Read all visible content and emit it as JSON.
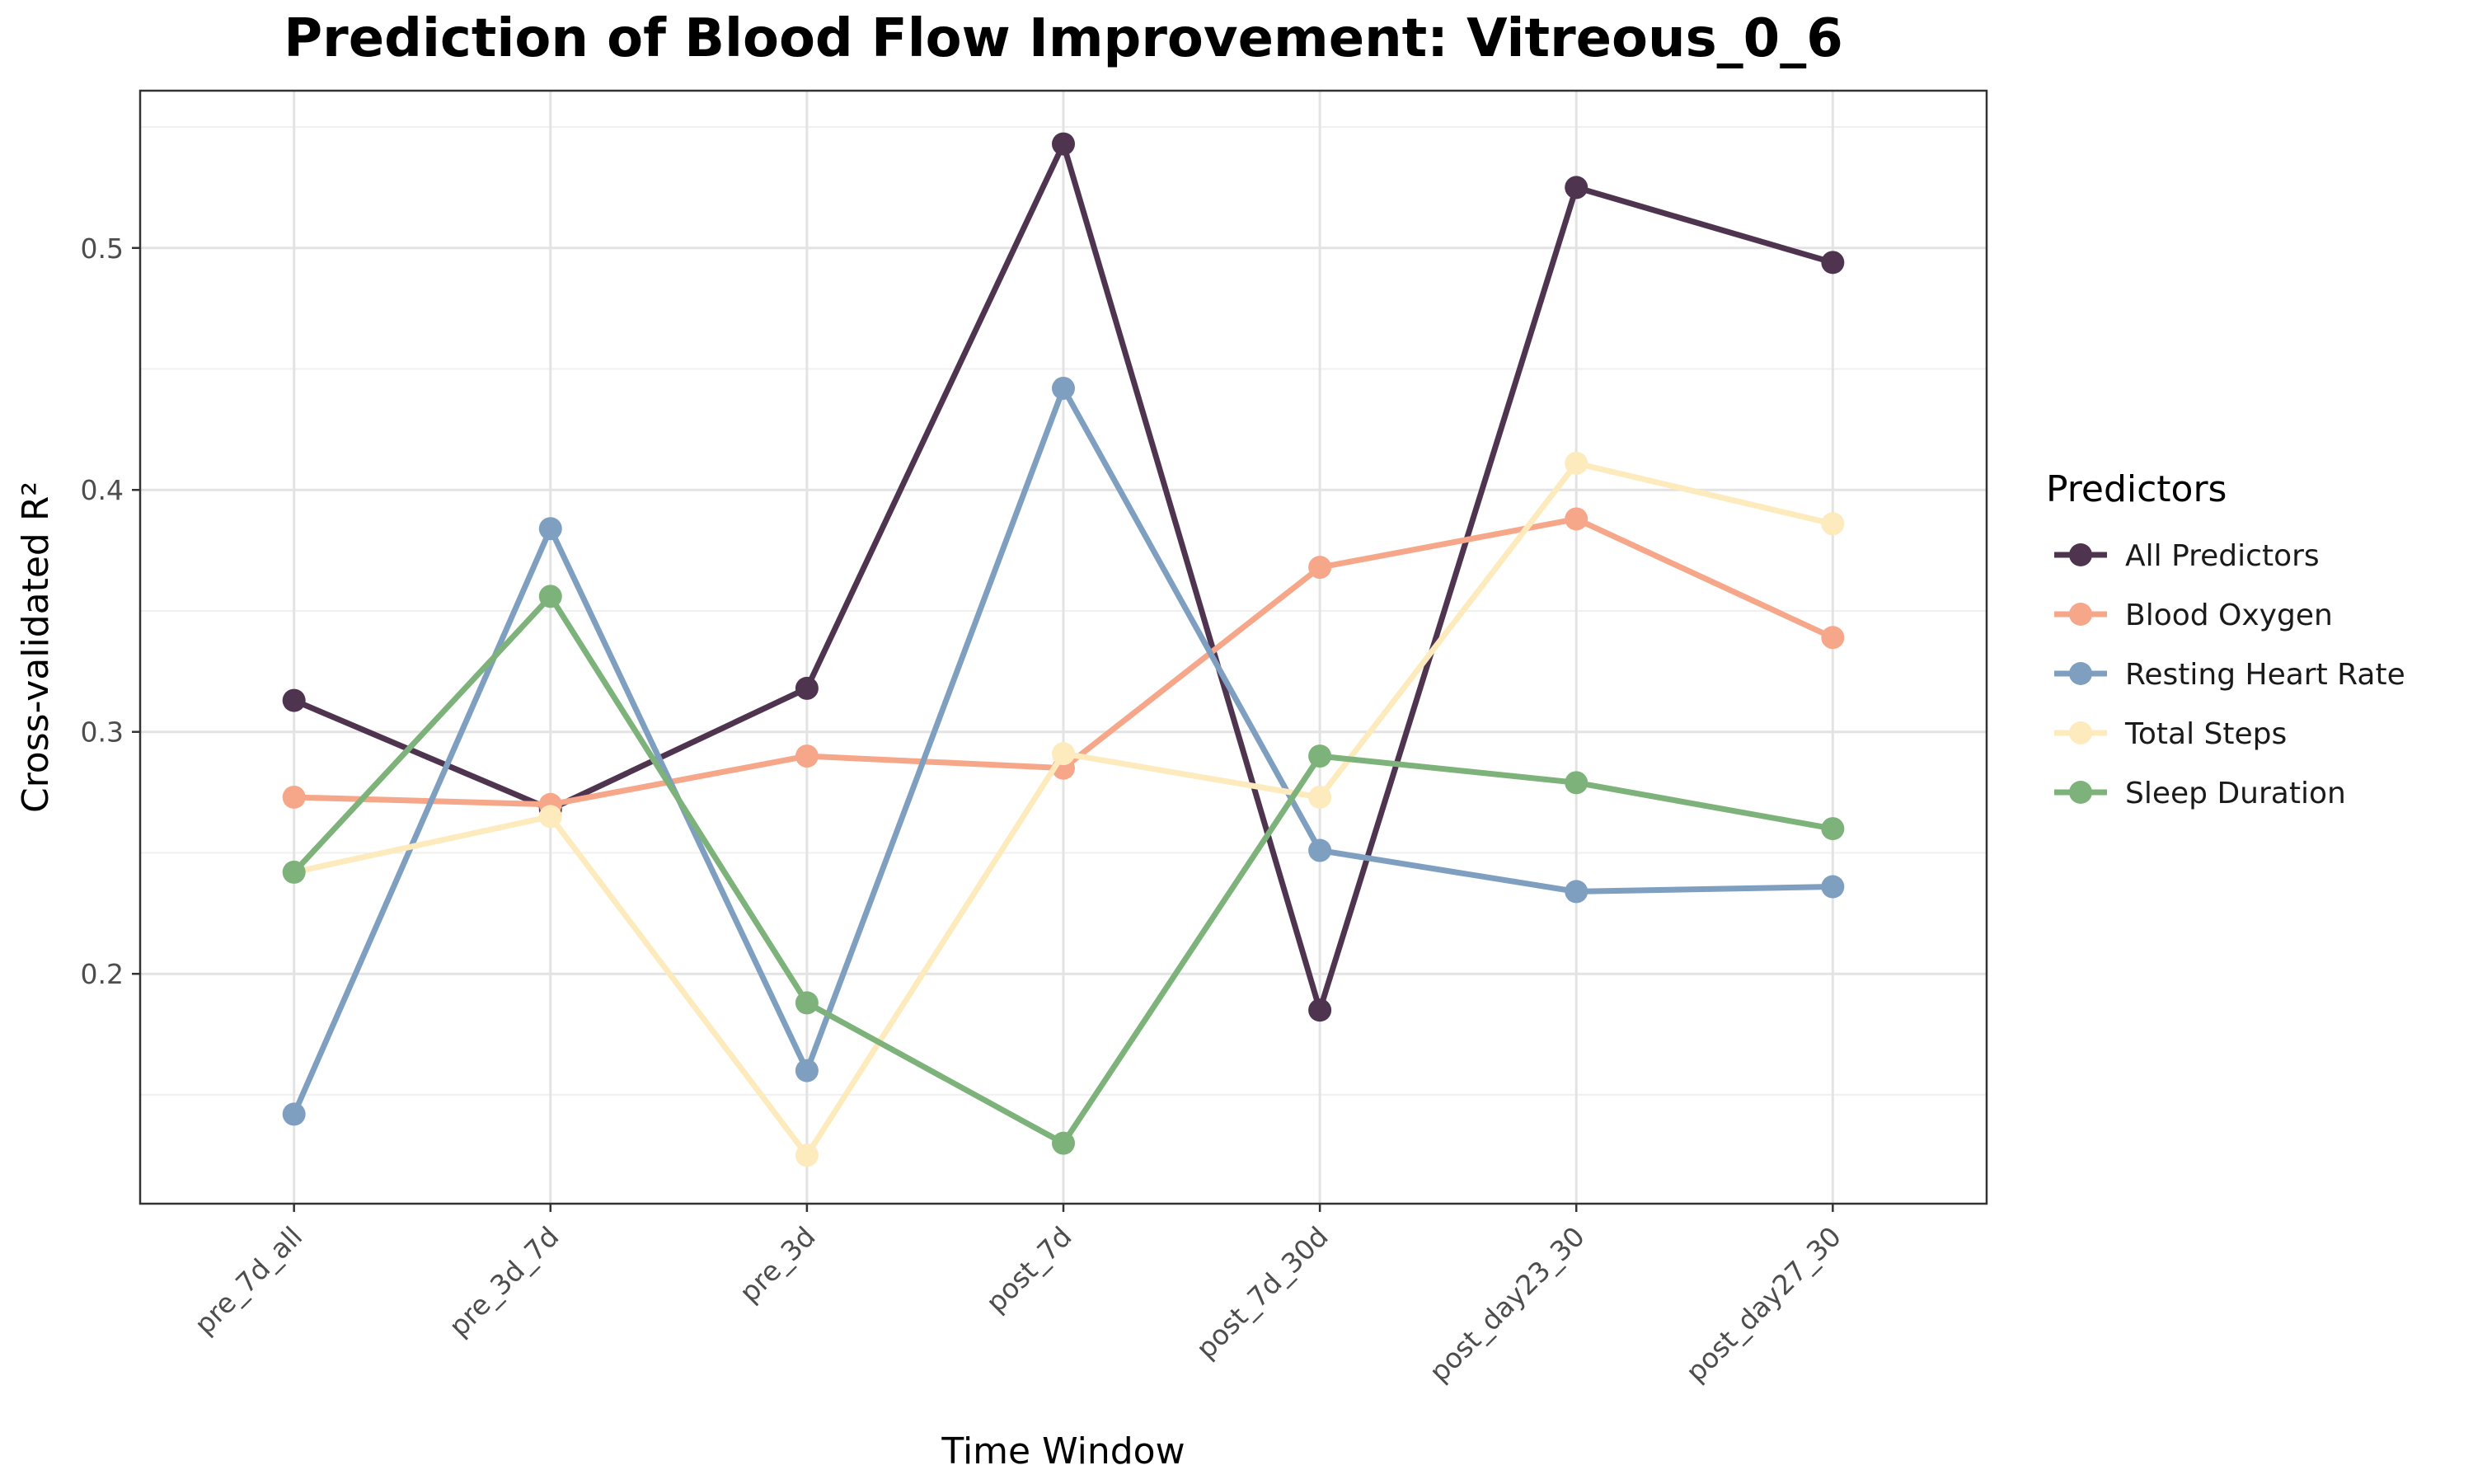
{
  "chart_data": {
    "type": "line",
    "title": "Prediction of Blood Flow Improvement: Vitreous_0_6",
    "xlabel": "Time Window",
    "ylabel": "Cross-validated R²",
    "categories": [
      "pre_7d_all",
      "pre_3d_7d",
      "pre_3d",
      "post_7d",
      "post_7d_30d",
      "post_day23_30",
      "post_day27_30"
    ],
    "ylim": [
      0.105,
      0.565
    ],
    "yticks": [
      0.2,
      0.3,
      0.4,
      0.5
    ],
    "ytick_labels": [
      "0.2",
      "0.3",
      "0.4",
      "0.5"
    ],
    "grid": true,
    "legend_title": "Predictors",
    "legend_position": "right",
    "series": [
      {
        "name": "All Predictors",
        "color": "#4e344f",
        "values": [
          0.313,
          0.268,
          0.318,
          0.543,
          0.185,
          0.525,
          0.494
        ]
      },
      {
        "name": "Blood Oxygen",
        "color": "#f6a78a",
        "values": [
          0.273,
          0.27,
          0.29,
          0.285,
          0.368,
          0.388,
          0.339
        ]
      },
      {
        "name": "Resting Heart Rate",
        "color": "#7f9fc0",
        "values": [
          0.142,
          0.384,
          0.16,
          0.442,
          0.251,
          0.234,
          0.236
        ]
      },
      {
        "name": "Total Steps",
        "color": "#fdebbd",
        "values": [
          0.242,
          0.265,
          0.125,
          0.291,
          0.273,
          0.411,
          0.386
        ]
      },
      {
        "name": "Sleep Duration",
        "color": "#7db37a",
        "values": [
          0.242,
          0.356,
          0.188,
          0.13,
          0.29,
          0.279,
          0.26
        ]
      }
    ]
  }
}
